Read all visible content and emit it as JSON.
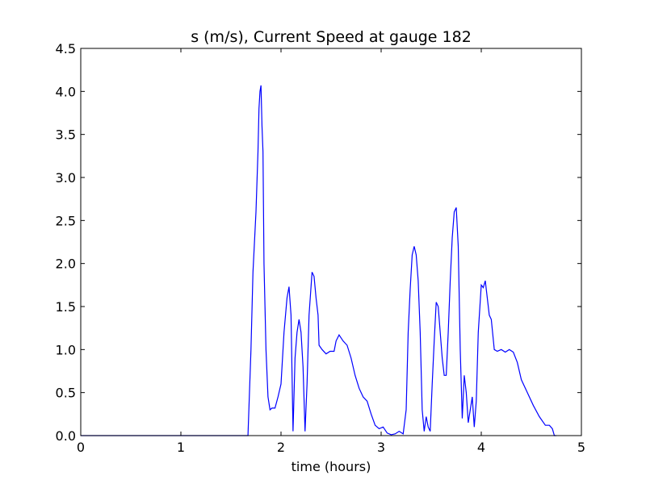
{
  "chart_data": {
    "type": "line",
    "title": "s (m/s), Current Speed at gauge 182",
    "x_label": "time (hours)",
    "xlim": [
      0,
      5
    ],
    "xticks": [
      0,
      1,
      2,
      3,
      4,
      5
    ],
    "ylim": [
      0,
      4.5
    ],
    "yticks": [
      {
        "value": 0,
        "label": "0.0"
      },
      {
        "value": 0.5,
        "label": "0.5"
      },
      {
        "value": 1,
        "label": "1.0"
      },
      {
        "value": 1.5,
        "label": "1.5"
      },
      {
        "value": 2,
        "label": "2.0"
      },
      {
        "value": 2.5,
        "label": "2.5"
      },
      {
        "value": 3,
        "label": "3.0"
      },
      {
        "value": 3.5,
        "label": "3.5"
      },
      {
        "value": 4,
        "label": "4.0"
      },
      {
        "value": 4.5,
        "label": "4.5"
      }
    ],
    "color": "#0000ff",
    "x": [
      0,
      1.65,
      1.67,
      1.7,
      1.72,
      1.75,
      1.77,
      1.78,
      1.79,
      1.8,
      1.81,
      1.82,
      1.83,
      1.85,
      1.87,
      1.89,
      1.91,
      1.94,
      1.97,
      2.0,
      2.03,
      2.06,
      2.08,
      2.1,
      2.12,
      2.14,
      2.16,
      2.18,
      2.2,
      2.22,
      2.24,
      2.26,
      2.28,
      2.31,
      2.33,
      2.35,
      2.37,
      2.38,
      2.41,
      2.45,
      2.49,
      2.53,
      2.55,
      2.58,
      2.62,
      2.66,
      2.7,
      2.74,
      2.78,
      2.82,
      2.86,
      2.9,
      2.94,
      2.98,
      3.02,
      3.06,
      3.1,
      3.14,
      3.18,
      3.22,
      3.25,
      3.27,
      3.29,
      3.31,
      3.33,
      3.35,
      3.37,
      3.39,
      3.41,
      3.43,
      3.45,
      3.47,
      3.49,
      3.51,
      3.53,
      3.55,
      3.57,
      3.59,
      3.61,
      3.63,
      3.65,
      3.67,
      3.69,
      3.71,
      3.73,
      3.75,
      3.77,
      3.79,
      3.81,
      3.83,
      3.85,
      3.87,
      3.89,
      3.91,
      3.93,
      3.95,
      3.97,
      4.0,
      4.02,
      4.04,
      4.06,
      4.08,
      4.1,
      4.13,
      4.16,
      4.2,
      4.24,
      4.28,
      4.32,
      4.36,
      4.4,
      4.46,
      4.52,
      4.58,
      4.64,
      4.68,
      4.71,
      4.73,
      4.75
    ],
    "values": [
      0,
      0,
      0,
      1.0,
      1.9,
      2.6,
      3.3,
      3.8,
      4.0,
      4.07,
      3.6,
      3.3,
      2.0,
      1.0,
      0.45,
      0.3,
      0.32,
      0.32,
      0.45,
      0.6,
      1.2,
      1.6,
      1.73,
      1.4,
      0.05,
      0.9,
      1.2,
      1.35,
      1.2,
      0.8,
      0.05,
      0.6,
      1.4,
      1.9,
      1.85,
      1.6,
      1.4,
      1.05,
      1.0,
      0.95,
      0.98,
      0.98,
      1.1,
      1.17,
      1.1,
      1.05,
      0.9,
      0.7,
      0.55,
      0.45,
      0.4,
      0.25,
      0.12,
      0.08,
      0.1,
      0.03,
      0.01,
      0.02,
      0.05,
      0.02,
      0.3,
      1.2,
      1.7,
      2.1,
      2.2,
      2.1,
      1.8,
      1.2,
      0.3,
      0.05,
      0.22,
      0.1,
      0.05,
      0.6,
      1.1,
      1.55,
      1.5,
      1.2,
      0.9,
      0.7,
      0.7,
      1.2,
      1.8,
      2.3,
      2.6,
      2.65,
      2.2,
      1.0,
      0.2,
      0.7,
      0.5,
      0.15,
      0.3,
      0.45,
      0.1,
      0.4,
      1.2,
      1.75,
      1.72,
      1.8,
      1.6,
      1.4,
      1.35,
      1.0,
      0.98,
      1.0,
      0.97,
      1.0,
      0.97,
      0.85,
      0.65,
      0.5,
      0.35,
      0.22,
      0.12,
      0.12,
      0.08,
      0.0,
      0
    ]
  }
}
